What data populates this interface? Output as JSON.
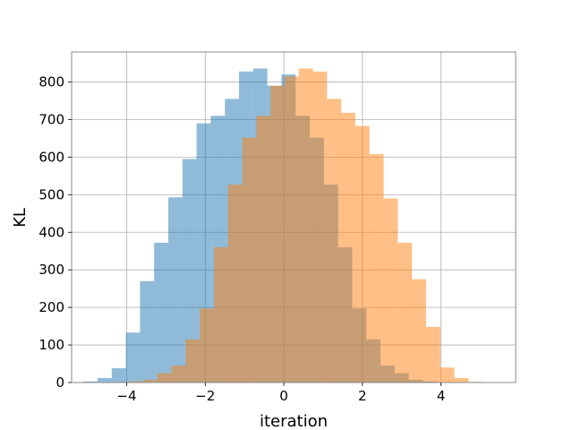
{
  "chart_data": {
    "type": "bar",
    "histogram": true,
    "xlabel": "iteration",
    "ylabel": "KL",
    "xlim": [
      -5.4,
      5.9
    ],
    "ylim": [
      0,
      880
    ],
    "grid": true,
    "xticks": [
      -4,
      -2,
      0,
      2,
      4
    ],
    "yticks": [
      0,
      100,
      200,
      300,
      400,
      500,
      600,
      700,
      800
    ],
    "series": [
      {
        "color": "#1f77b4",
        "alpha": 0.5,
        "bin_edges": [
          -5.1,
          -4.74,
          -4.38,
          -4.02,
          -3.66,
          -3.3,
          -2.94,
          -2.58,
          -2.22,
          -1.86,
          -1.5,
          -1.14,
          -0.78,
          -0.42,
          -0.06,
          0.3,
          0.66,
          1.02,
          1.38,
          1.74,
          2.1,
          2.46,
          2.82,
          3.18,
          3.54,
          3.9,
          4.26
        ],
        "counts": [
          3,
          12,
          38,
          133,
          270,
          372,
          493,
          595,
          690,
          710,
          755,
          828,
          836,
          790,
          820,
          710,
          652,
          527,
          360,
          197,
          115,
          45,
          25,
          7,
          3,
          1
        ]
      },
      {
        "color": "#ff7f0e",
        "alpha": 0.5,
        "bin_edges": [
          -4.3,
          -3.94,
          -3.58,
          -3.22,
          -2.86,
          -2.5,
          -2.14,
          -1.78,
          -1.42,
          -1.06,
          -0.7,
          -0.34,
          0.02,
          0.38,
          0.74,
          1.1,
          1.46,
          1.82,
          2.18,
          2.54,
          2.9,
          3.26,
          3.62,
          3.98,
          4.34,
          4.7,
          5.06
        ],
        "counts": [
          1,
          3,
          7,
          25,
          45,
          115,
          197,
          360,
          527,
          652,
          710,
          790,
          815,
          836,
          828,
          755,
          718,
          683,
          608,
          490,
          372,
          275,
          148,
          40,
          12,
          2
        ]
      }
    ]
  }
}
